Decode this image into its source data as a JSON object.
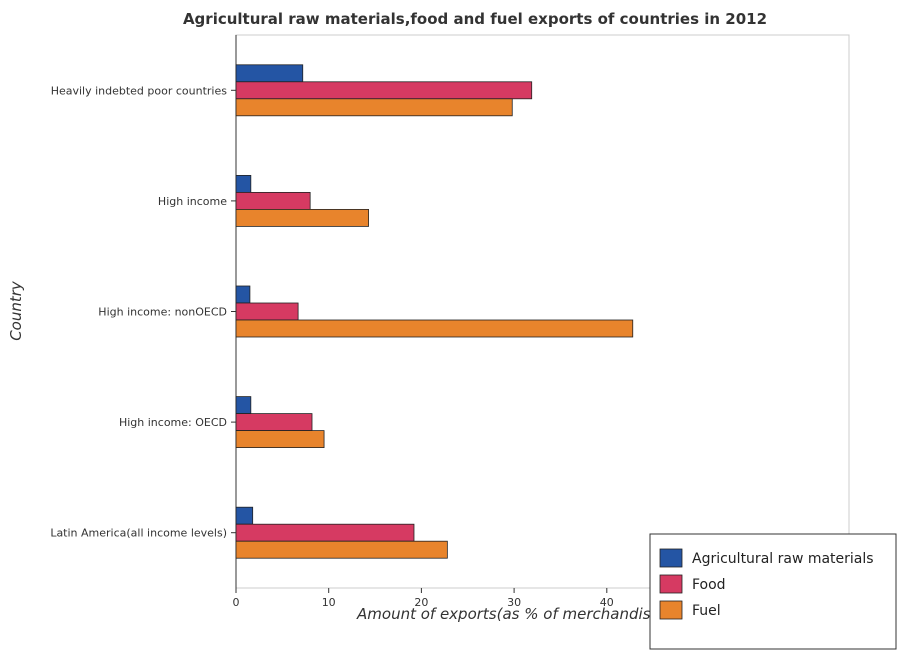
{
  "chart_data": {
    "type": "bar",
    "orientation": "horizontal",
    "title": "Agricultural raw materials,food and fuel exports of countries in 2012",
    "xlabel": "Amount of exports(as % of merchandise exports)",
    "ylabel": "Country",
    "xlim": [
      0,
      45
    ],
    "xticks": [
      0,
      10,
      20,
      30,
      40
    ],
    "grid": false,
    "legend_position": "bottom-right",
    "categories": [
      "Heavily indebted poor countries",
      "High income",
      "High income: nonOECD",
      "High income: OECD",
      "Latin America(all income levels)"
    ],
    "series": [
      {
        "name": "Agricultural raw materials",
        "color": "#2455a4",
        "values": [
          7.2,
          1.6,
          1.5,
          1.6,
          1.8
        ]
      },
      {
        "name": "Food",
        "color": "#d63a62",
        "values": [
          31.9,
          8.0,
          6.7,
          8.2,
          19.2
        ]
      },
      {
        "name": "Fuel",
        "color": "#e8842c",
        "values": [
          29.8,
          14.3,
          42.8,
          9.5,
          22.8
        ]
      }
    ]
  }
}
